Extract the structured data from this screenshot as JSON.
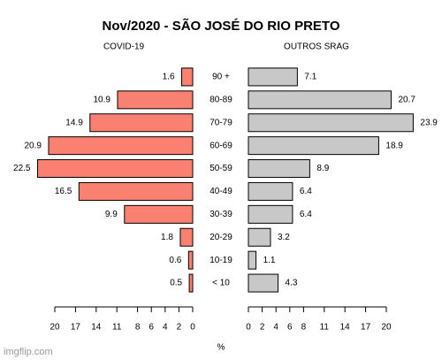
{
  "chart_data": {
    "type": "pyramid",
    "title": "Nov/2020 - SÃO JOSÉ DO RIO PRETO",
    "categories": [
      "90 +",
      "80-89",
      "70-79",
      "60-69",
      "50-59",
      "40-49",
      "30-39",
      "20-29",
      "10-19",
      "< 10"
    ],
    "series": [
      {
        "name": "COVID-19",
        "color": "#fa8072",
        "values": [
          1.6,
          10.9,
          14.9,
          20.9,
          22.5,
          16.5,
          9.9,
          1.8,
          0.6,
          0.5
        ]
      },
      {
        "name": "OUTROS SRAG",
        "color": "#c8c8c8",
        "values": [
          7.1,
          20.7,
          23.9,
          18.9,
          8.9,
          6.4,
          6.4,
          3.2,
          1.1,
          4.3
        ]
      }
    ],
    "xlabel": "%",
    "xlim": [
      0,
      20
    ],
    "xticks": [
      0,
      2,
      4,
      6,
      8,
      11,
      14,
      17,
      20
    ]
  },
  "watermark": "imgflip.com"
}
